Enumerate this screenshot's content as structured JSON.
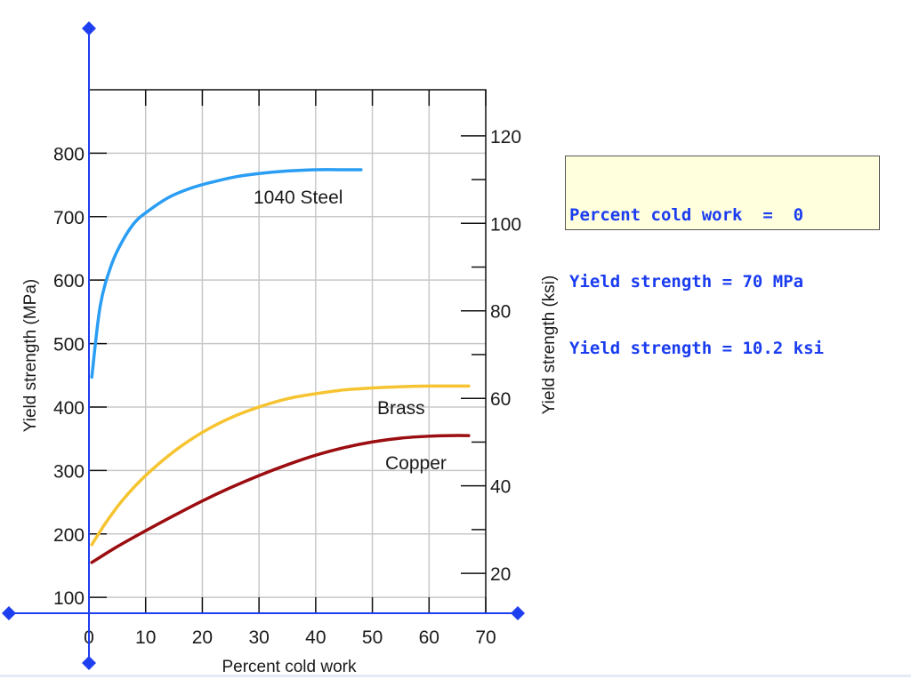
{
  "readout": {
    "line1": "Percent cold work  =  0",
    "line2": "Yield strength = 70 MPa",
    "line3": "Yield strength = 10.2 ksi"
  },
  "colors": {
    "steel": "#2a9df4",
    "brass": "#f6c431",
    "copper": "#9b0d10",
    "cursor": "#1e3ff0",
    "grid": "#c8c8c8",
    "readout_bg": "#ffffdd",
    "readout_text": "#1a3cf0"
  },
  "chart_data": {
    "type": "line",
    "xlabel": "Percent cold work",
    "ylabel": "Yield strength (MPa)",
    "y2label": "Yield strength (ksi)",
    "xlim": [
      0,
      70
    ],
    "ylim": [
      75,
      900
    ],
    "y2lim": [
      10.88,
      130.53
    ],
    "x_ticks": [
      0,
      10,
      20,
      30,
      40,
      50,
      60,
      70
    ],
    "y_ticks": [
      100,
      200,
      300,
      400,
      500,
      600,
      700,
      800
    ],
    "y2_ticks": [
      20,
      40,
      60,
      80,
      100,
      120
    ],
    "grid": true,
    "cursor": {
      "x": 0
    },
    "series": [
      {
        "name": "1040 Steel",
        "color_key": "steel",
        "x": [
          0.5,
          2,
          4,
          6,
          8,
          10,
          14,
          18,
          22,
          26,
          30,
          35,
          40,
          44,
          48
        ],
        "y": [
          447,
          560,
          625,
          663,
          690,
          706,
          730,
          745,
          755,
          763,
          768,
          772,
          774,
          774,
          774
        ]
      },
      {
        "name": "Brass",
        "color_key": "brass",
        "x": [
          0.5,
          3,
          6,
          10,
          15,
          20,
          25,
          30,
          35,
          40,
          45,
          50,
          55,
          60,
          67
        ],
        "y": [
          183,
          218,
          254,
          292,
          330,
          360,
          383,
          400,
          413,
          421,
          427,
          430,
          432,
          433,
          433
        ]
      },
      {
        "name": "Copper",
        "color_key": "copper",
        "x": [
          0.5,
          5,
          10,
          15,
          20,
          25,
          30,
          35,
          40,
          45,
          50,
          55,
          60,
          64,
          67
        ],
        "y": [
          155,
          180,
          205,
          229,
          252,
          273,
          292,
          309,
          324,
          336,
          345,
          351,
          354,
          355,
          355
        ]
      }
    ]
  }
}
